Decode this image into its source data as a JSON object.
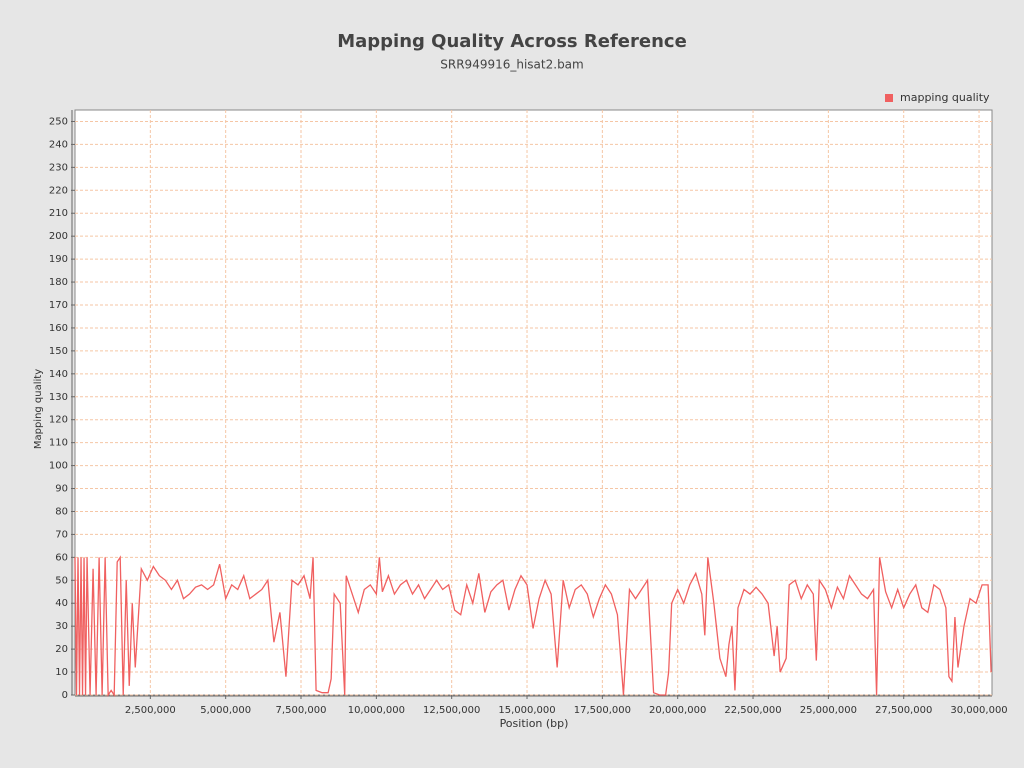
{
  "chart_data": {
    "type": "line",
    "title": "Mapping Quality Across Reference",
    "subtitle": "SRR949916_hisat2.bam",
    "xlabel": "Position (bp)",
    "ylabel": "Mapping quality",
    "legend_position": "top-right",
    "grid": true,
    "xlim": [
      0,
      30430000
    ],
    "ylim": [
      0,
      255
    ],
    "xticks": [
      {
        "value": 2500000,
        "label": "2,500,000"
      },
      {
        "value": 5000000,
        "label": "5,000,000"
      },
      {
        "value": 7500000,
        "label": "7,500,000"
      },
      {
        "value": 10000000,
        "label": "10,000,000"
      },
      {
        "value": 12500000,
        "label": "12,500,000"
      },
      {
        "value": 15000000,
        "label": "15,000,000"
      },
      {
        "value": 17500000,
        "label": "17,500,000"
      },
      {
        "value": 20000000,
        "label": "20,000,000"
      },
      {
        "value": 22500000,
        "label": "22,500,000"
      },
      {
        "value": 25000000,
        "label": "25,000,000"
      },
      {
        "value": 27500000,
        "label": "27,500,000"
      },
      {
        "value": 30000000,
        "label": "30,000,000"
      }
    ],
    "yticks": [
      0,
      10,
      20,
      30,
      40,
      50,
      60,
      70,
      80,
      90,
      100,
      110,
      120,
      130,
      140,
      150,
      160,
      170,
      180,
      190,
      200,
      210,
      220,
      230,
      240,
      250
    ],
    "x": [
      0,
      50000,
      100000,
      150000,
      200000,
      250000,
      300000,
      350000,
      400000,
      500000,
      600000,
      700000,
      800000,
      900000,
      1000000,
      1100000,
      1200000,
      1300000,
      1400000,
      1500000,
      1600000,
      1700000,
      1800000,
      1900000,
      2000000,
      2200000,
      2400000,
      2600000,
      2800000,
      3000000,
      3200000,
      3400000,
      3600000,
      3800000,
      4000000,
      4200000,
      4400000,
      4600000,
      4800000,
      5000000,
      5200000,
      5400000,
      5600000,
      5800000,
      6000000,
      6200000,
      6400000,
      6600000,
      6800000,
      7000000,
      7200000,
      7400000,
      7600000,
      7800000,
      7900000,
      8000000,
      8200000,
      8400000,
      8500000,
      8600000,
      8800000,
      8950000,
      9000000,
      9200000,
      9400000,
      9600000,
      9800000,
      10000000,
      10100000,
      10200000,
      10400000,
      10600000,
      10800000,
      11000000,
      11200000,
      11400000,
      11600000,
      11800000,
      12000000,
      12200000,
      12400000,
      12600000,
      12800000,
      13000000,
      13200000,
      13400000,
      13600000,
      13800000,
      14000000,
      14200000,
      14400000,
      14600000,
      14800000,
      15000000,
      15200000,
      15400000,
      15600000,
      15800000,
      16000000,
      16200000,
      16400000,
      16600000,
      16800000,
      17000000,
      17200000,
      17400000,
      17600000,
      17800000,
      18000000,
      18200000,
      18400000,
      18600000,
      18800000,
      19000000,
      19200000,
      19400000,
      19600000,
      19700000,
      19800000,
      20000000,
      20200000,
      20400000,
      20600000,
      20800000,
      20900000,
      21000000,
      21200000,
      21400000,
      21600000,
      21700000,
      21800000,
      21900000,
      22000000,
      22200000,
      22400000,
      22600000,
      22800000,
      23000000,
      23200000,
      23300000,
      23400000,
      23600000,
      23700000,
      23900000,
      24100000,
      24300000,
      24500000,
      24600000,
      24700000,
      24900000,
      25100000,
      25300000,
      25500000,
      25700000,
      25900000,
      26100000,
      26300000,
      26500000,
      26600000,
      26700000,
      26900000,
      27100000,
      27300000,
      27500000,
      27700000,
      27900000,
      28100000,
      28300000,
      28500000,
      28700000,
      28900000,
      29000000,
      29100000,
      29200000,
      29300000,
      29500000,
      29700000,
      29900000,
      30100000,
      30300000,
      30400000
    ],
    "series": [
      {
        "name": "mapping quality",
        "color": "#f06060",
        "values": [
          60,
          0,
          60,
          0,
          60,
          0,
          60,
          0,
          60,
          0,
          55,
          0,
          60,
          0,
          60,
          0,
          2,
          0,
          58,
          60,
          0,
          50,
          4,
          40,
          12,
          55,
          50,
          56,
          52,
          50,
          46,
          50,
          42,
          44,
          47,
          48,
          46,
          48,
          57,
          42,
          48,
          46,
          52,
          42,
          44,
          46,
          50,
          23,
          36,
          8,
          50,
          48,
          52,
          42,
          60,
          2,
          1,
          1,
          7,
          44,
          40,
          0,
          52,
          44,
          36,
          46,
          48,
          44,
          60,
          45,
          52,
          44,
          48,
          50,
          44,
          48,
          42,
          46,
          50,
          46,
          48,
          37,
          35,
          48,
          40,
          53,
          36,
          45,
          48,
          50,
          37,
          46,
          52,
          48,
          29,
          42,
          50,
          44,
          12,
          50,
          38,
          46,
          48,
          44,
          34,
          42,
          48,
          44,
          35,
          0,
          46,
          42,
          46,
          50,
          1,
          0,
          0,
          10,
          40,
          46,
          40,
          48,
          53,
          44,
          26,
          60,
          40,
          16,
          8,
          22,
          30,
          2,
          38,
          46,
          44,
          47,
          44,
          40,
          17,
          30,
          10,
          16,
          48,
          50,
          42,
          48,
          44,
          15,
          50,
          46,
          38,
          47,
          42,
          52,
          48,
          44,
          42,
          46,
          0,
          60,
          45,
          38,
          46,
          38,
          44,
          48,
          38,
          36,
          48,
          46,
          38,
          8,
          6,
          34,
          12,
          30,
          42,
          40,
          48,
          48,
          10
        ]
      }
    ]
  }
}
